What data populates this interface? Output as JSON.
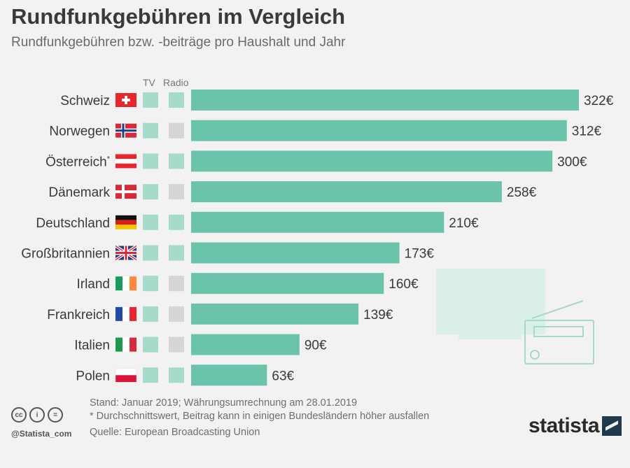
{
  "header": {
    "title": "Rundfunkgebühren im Vergleich",
    "subtitle": "Rundfunkgebühren bzw. -beiträge pro Haushalt und Jahr"
  },
  "columns": {
    "tv": "TV",
    "radio": "Radio"
  },
  "colors": {
    "bar": "#6cc3ac",
    "indicator_on": "#a6dbcc",
    "indicator_off": "#d6d6d6",
    "illustration": "#d9efe8"
  },
  "chart_data": {
    "type": "bar",
    "orientation": "horizontal",
    "title": "Rundfunkgebühren im Vergleich",
    "subtitle": "Rundfunkgebühren bzw. -beiträge pro Haushalt und Jahr",
    "categories": [
      "Schweiz",
      "Norwegen",
      "Österreich",
      "Dänemark",
      "Deutschland",
      "Großbritannien",
      "Irland",
      "Frankreich",
      "Italien",
      "Polen"
    ],
    "footnote_marks": [
      "",
      "",
      "*",
      "",
      "",
      "",
      "",
      "",
      "",
      ""
    ],
    "flags": [
      "ch-flag-icon",
      "no-flag-icon",
      "at-flag-icon",
      "dk-flag-icon",
      "de-flag-icon",
      "gb-flag-icon",
      "ie-flag-icon",
      "fr-flag-icon",
      "it-flag-icon",
      "pl-flag-icon"
    ],
    "values": [
      322,
      312,
      300,
      258,
      210,
      173,
      160,
      139,
      90,
      63
    ],
    "value_labels": [
      "322€",
      "312€",
      "300€",
      "258€",
      "210€",
      "173€",
      "160€",
      "139€",
      "90€",
      "63€"
    ],
    "tv_included": [
      true,
      true,
      true,
      true,
      true,
      true,
      true,
      true,
      true,
      true
    ],
    "radio_included": [
      true,
      false,
      true,
      false,
      true,
      true,
      false,
      false,
      false,
      true
    ],
    "xlim": [
      0,
      322
    ]
  },
  "footer": {
    "note1": "Stand: Januar 2019; Währungsumrechnung am 28.01.2019",
    "note2": "* Durchschnittswert, Beitrag kann in einigen Bundesländern höher ausfallen",
    "source": "Quelle: European Broadcasting Union",
    "credit": "@Statista_com",
    "brand": "statista",
    "cc_labels": [
      "cc",
      "i",
      "="
    ]
  }
}
